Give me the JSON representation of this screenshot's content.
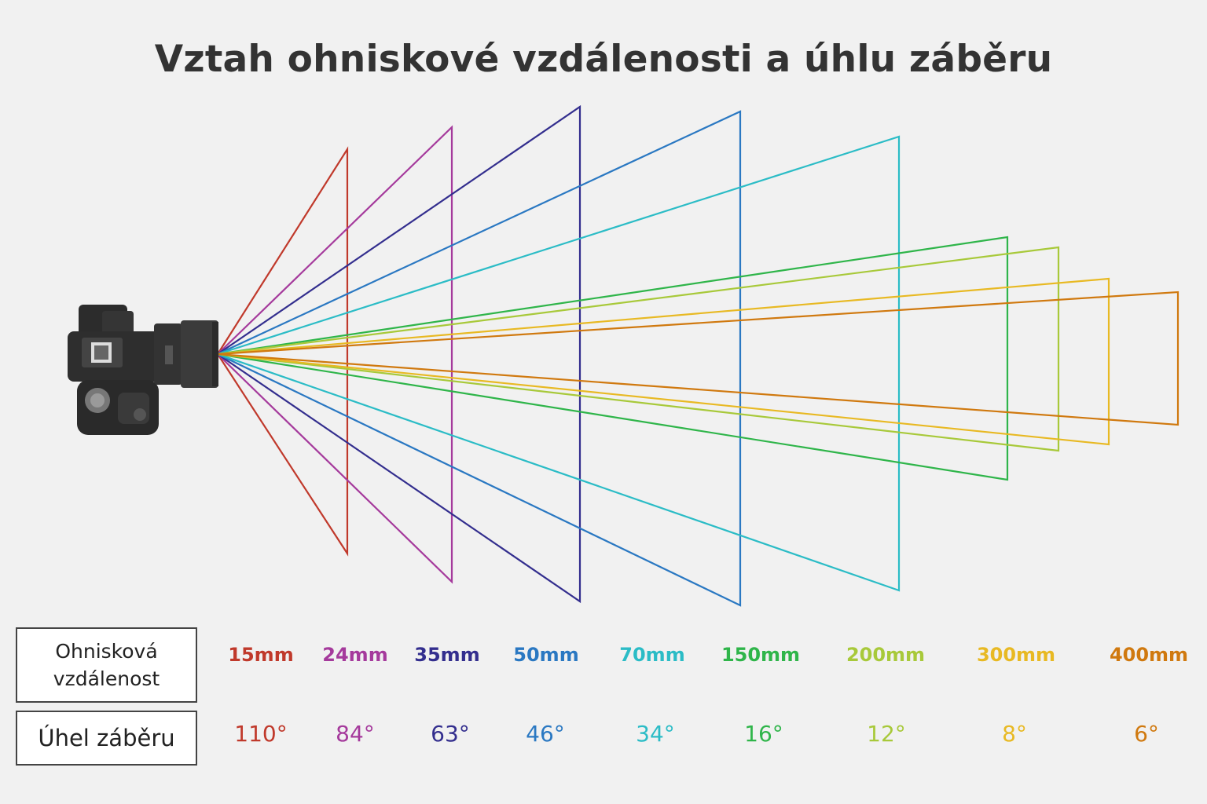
{
  "title": "Vztah ohniskové vzdálenosti a úhlu záběru",
  "labels": {
    "focal_length": "Ohnisková vzdálenost",
    "angle_of_view": "Úhel záběru"
  },
  "icons": {
    "camera": "camera-icon"
  },
  "lenses": [
    {
      "focal": "15mm",
      "angle": "110°",
      "angle_deg": 110,
      "color": "#c0392b"
    },
    {
      "focal": "24mm",
      "angle": "84°",
      "angle_deg": 84,
      "color": "#a53a9c"
    },
    {
      "focal": "35mm",
      "angle": "63°",
      "angle_deg": 63,
      "color": "#332e8e"
    },
    {
      "focal": "50mm",
      "angle": "46°",
      "angle_deg": 46,
      "color": "#2a78c2"
    },
    {
      "focal": "70mm",
      "angle": "34°",
      "angle_deg": 34,
      "color": "#2bbcc6"
    },
    {
      "focal": "150mm",
      "angle": "16°",
      "angle_deg": 16,
      "color": "#2fb54a"
    },
    {
      "focal": "200mm",
      "angle": "12°",
      "angle_deg": 12,
      "color": "#a8c93a"
    },
    {
      "focal": "300mm",
      "angle": "8°",
      "angle_deg": 8,
      "color": "#e8b923"
    },
    {
      "focal": "400mm",
      "angle": "6°",
      "angle_deg": 6,
      "color": "#d0790f"
    }
  ]
}
